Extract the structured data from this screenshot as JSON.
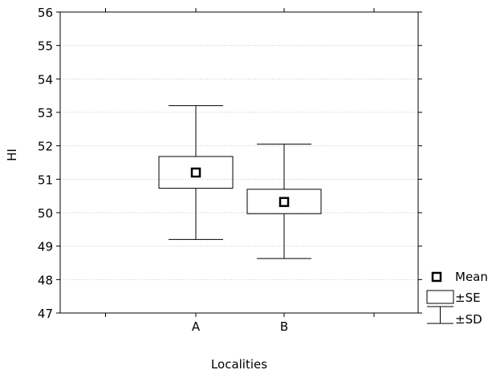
{
  "chart_data": {
    "type": "box",
    "title": "",
    "xlabel": "Localities",
    "ylabel": "HI",
    "ylim": [
      47,
      56
    ],
    "yticks": [
      47,
      48,
      49,
      50,
      51,
      52,
      53,
      54,
      55,
      56
    ],
    "categories": [
      "A",
      "B"
    ],
    "grid": true,
    "series": [
      {
        "category": "A",
        "mean": 51.2,
        "se_low": 50.73,
        "se_high": 51.68,
        "sd_low": 49.2,
        "sd_high": 53.2
      },
      {
        "category": "B",
        "mean": 50.32,
        "se_low": 49.97,
        "se_high": 50.7,
        "sd_low": 48.63,
        "sd_high": 52.05
      }
    ],
    "legend": {
      "placement": "bottom-right",
      "items": [
        {
          "label": "Mean",
          "marker": "square-icon"
        },
        {
          "label": "±SE",
          "marker": "box-icon"
        },
        {
          "label": "±SD",
          "marker": "whisker-icon"
        }
      ]
    }
  }
}
